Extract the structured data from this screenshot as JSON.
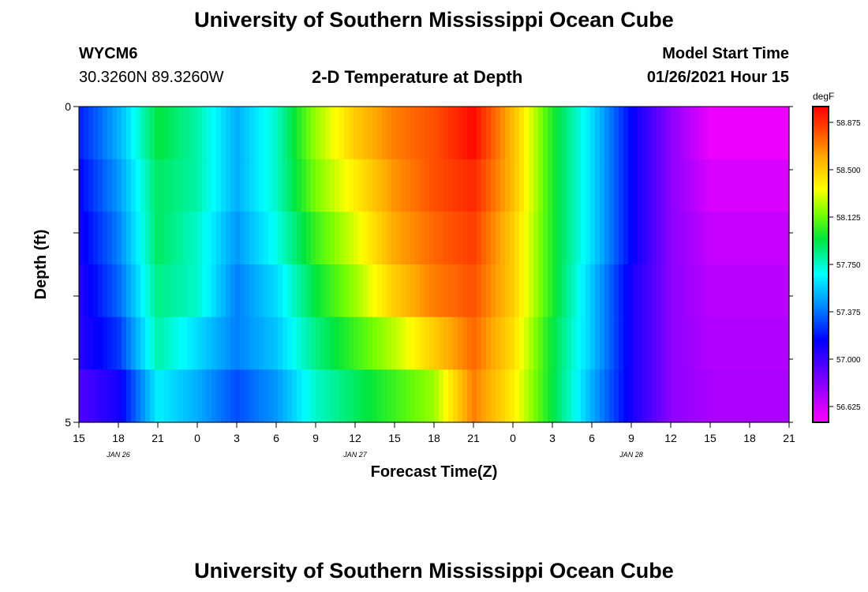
{
  "header": {
    "title": "University of Southern Mississippi Ocean Cube",
    "station": "WYCM6",
    "location": "30.3260N 89.3260W",
    "plot_title": "2-D Temperature at Depth",
    "model_label": "Model Start Time",
    "model_time": "01/26/2021 Hour 15"
  },
  "footer": {
    "title": "University of Southern Mississippi Ocean Cube"
  },
  "chart_data": {
    "type": "heatmap",
    "title": "2-D Temperature at Depth",
    "xlabel": "Forecast Time(Z)",
    "ylabel": "Depth (ft)",
    "x_tick_labels": [
      "15",
      "18",
      "21",
      "0",
      "3",
      "6",
      "9",
      "12",
      "15",
      "18",
      "21",
      "0",
      "3",
      "6",
      "9",
      "12",
      "15",
      "18",
      "21"
    ],
    "date_labels": [
      {
        "label": "JAN 26",
        "tick_index": 1
      },
      {
        "label": "JAN 27",
        "tick_index": 7
      },
      {
        "label": "JAN 28",
        "tick_index": 14
      }
    ],
    "y_tick_labels": [
      "0",
      "5"
    ],
    "ylim": [
      0,
      5
    ],
    "depth_levels_ft": [
      0,
      1,
      2,
      3,
      4,
      5
    ],
    "colorbar": {
      "unit": "degF",
      "labels": [
        "58.875",
        "58.500",
        "58.125",
        "57.750",
        "57.375",
        "57.000",
        "56.625"
      ],
      "vmin": 56.5,
      "vmax": 59.0
    },
    "x_time_hours": [
      0,
      3,
      6,
      9,
      12,
      15,
      18,
      21,
      24,
      27,
      30,
      33,
      36,
      39,
      42,
      45,
      48,
      51,
      54
    ],
    "rows": [
      {
        "depth_ft": 0.25,
        "values": [
          57.2,
          57.5,
          57.95,
          57.8,
          57.5,
          57.75,
          58.2,
          58.5,
          58.7,
          58.8,
          58.98,
          58.55,
          58.0,
          57.6,
          57.15,
          56.8,
          56.55,
          56.55,
          56.55
        ]
      },
      {
        "depth_ft": 1.0,
        "values": [
          57.15,
          57.45,
          57.9,
          57.8,
          57.5,
          57.75,
          58.15,
          58.4,
          58.65,
          58.8,
          58.9,
          58.55,
          58.0,
          57.6,
          57.15,
          56.8,
          56.6,
          56.6,
          56.6
        ]
      },
      {
        "depth_ft": 2.0,
        "values": [
          57.1,
          57.4,
          57.9,
          57.75,
          57.45,
          57.7,
          58.05,
          58.3,
          58.6,
          58.75,
          58.85,
          58.5,
          58.0,
          57.6,
          57.15,
          56.8,
          56.65,
          56.65,
          56.65
        ]
      },
      {
        "depth_ft": 3.0,
        "values": [
          57.05,
          57.35,
          57.85,
          57.75,
          57.4,
          57.6,
          57.95,
          58.2,
          58.5,
          58.7,
          58.8,
          58.5,
          58.0,
          57.55,
          57.1,
          56.8,
          56.68,
          56.68,
          56.68
        ]
      },
      {
        "depth_ft": 4.0,
        "values": [
          57.05,
          57.25,
          57.8,
          57.6,
          57.4,
          57.55,
          57.85,
          58.05,
          58.25,
          58.5,
          58.75,
          58.45,
          57.95,
          57.55,
          57.1,
          56.8,
          56.7,
          56.7,
          56.7
        ]
      },
      {
        "depth_ft": 4.75,
        "values": [
          56.95,
          57.1,
          57.65,
          57.5,
          57.3,
          57.45,
          57.75,
          57.9,
          58.05,
          58.2,
          58.7,
          58.4,
          57.95,
          57.5,
          57.1,
          56.8,
          56.72,
          56.72,
          56.72
        ]
      }
    ],
    "grid": false,
    "legend": "right colorbar"
  }
}
